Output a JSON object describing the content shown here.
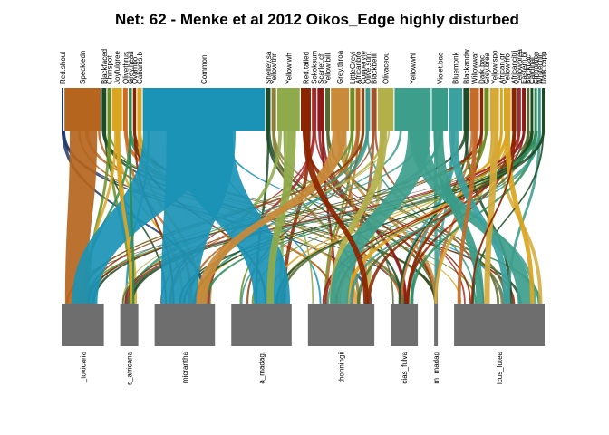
{
  "chart_data": {
    "type": "bipartite",
    "title": "Net: 62 - Menke et al 2012 Oikos_Edge highly disturbed",
    "higher_level": [
      {
        "label": "Red.shoul",
        "weight": 0.4,
        "color": "#1f3a6b"
      },
      {
        "label": "Speckledn",
        "weight": 8,
        "color": "#b5651d"
      },
      {
        "label": "Blackfaced",
        "weight": 1,
        "color": "#1c4b26"
      },
      {
        "label": "Chinspot",
        "weight": 0.8,
        "color": "#6b8e23"
      },
      {
        "label": "Joyfulgree",
        "weight": 2.2,
        "color": "#daa520"
      },
      {
        "label": "Olivethrus",
        "weight": 1,
        "color": "#d2691e"
      },
      {
        "label": "Grey.head",
        "weight": 0.7,
        "color": "#2e8b57"
      },
      {
        "label": "Ovambo",
        "weight": 0.7,
        "color": "#8b2500"
      },
      {
        "label": "Cabanis.b",
        "weight": 1,
        "color": "#daa520"
      },
      {
        "label": "Common",
        "weight": 27,
        "color": "#1a93b6"
      },
      {
        "label": "Shelley.sa",
        "weight": 1,
        "color": "#1c4b26"
      },
      {
        "label": "Yellow.thr",
        "weight": 1,
        "color": "#8b7d3a"
      },
      {
        "label": "Yellow.wh",
        "weight": 5,
        "color": "#8faa4a"
      },
      {
        "label": "Red.tailed",
        "weight": 2.2,
        "color": "#8b2500"
      },
      {
        "label": "Sokoksum",
        "weight": 1,
        "color": "#a52a2a"
      },
      {
        "label": "Scarlet.ch",
        "weight": 1.5,
        "color": "#8b1a1a"
      },
      {
        "label": "Yellow.bill",
        "weight": 1,
        "color": "#556b2f"
      },
      {
        "label": "Grey.throa",
        "weight": 4,
        "color": "#c98a3a"
      },
      {
        "label": "LittleGreyi",
        "weight": 1,
        "color": "#6b8e23"
      },
      {
        "label": "Africanbro",
        "weight": 1,
        "color": "#b5651d"
      },
      {
        "label": "Copperyte",
        "weight": 0.7,
        "color": "#8b4513"
      },
      {
        "label": "Olive.sunt",
        "weight": 1,
        "color": "#3c9a8a"
      },
      {
        "label": "Blackbelli",
        "weight": 1.2,
        "color": "#a0522d"
      },
      {
        "label": "Olivaceou",
        "weight": 3.5,
        "color": "#b3b04a"
      },
      {
        "label": "Yellowwhi",
        "weight": 8,
        "color": "#3d9e8c"
      },
      {
        "label": "Violet.bac",
        "weight": 3.5,
        "color": "#389b88"
      },
      {
        "label": "Bluemonk",
        "weight": 3,
        "color": "#3aa0a0"
      },
      {
        "label": "Blackandw",
        "weight": 1.2,
        "color": "#1c4b26"
      },
      {
        "label": "Willowwar",
        "weight": 2,
        "color": "#c46a2a"
      },
      {
        "label": "Dark.bac",
        "weight": 0.7,
        "color": "#8b2500"
      },
      {
        "label": "Grey.brea",
        "weight": 1,
        "color": "#6b8e23"
      },
      {
        "label": "Yellow.spo",
        "weight": 2,
        "color": "#d4a93a"
      },
      {
        "label": "African.gr",
        "weight": 0.6,
        "color": "#daa520"
      },
      {
        "label": "Yellow.fro",
        "weight": 1.5,
        "color": "#daa520"
      },
      {
        "label": "Africancitri",
        "weight": 1,
        "color": "#8b2500"
      },
      {
        "label": "Yellowbrea",
        "weight": 0.8,
        "color": "#a52a2a"
      },
      {
        "label": "Eastern.bl",
        "weight": 0.8,
        "color": "#8b1a1a"
      },
      {
        "label": "Blackbac",
        "weight": 0.6,
        "color": "#556b2f"
      },
      {
        "label": "Cardinal",
        "weight": 0.6,
        "color": "#1c4b26"
      },
      {
        "label": "Cinnamon",
        "weight": 0.6,
        "color": "#2e8b57"
      },
      {
        "label": "Whitechin",
        "weight": 0.6,
        "color": "#3c9a8a"
      },
      {
        "label": "Dark.capp",
        "weight": 0.6,
        "color": "#1c4b26"
      }
    ],
    "lower_level": [
      {
        "label": "_toxicaria",
        "weight": 14
      },
      {
        "label": "s_africana",
        "weight": 6
      },
      {
        "label": "micrantha",
        "weight": 20
      },
      {
        "label": "a_madag.",
        "weight": 20
      },
      {
        "label": "thonningii",
        "weight": 22
      },
      {
        "label": "cias_fulva",
        "weight": 9
      },
      {
        "label": "m_madag",
        "weight": 1.2
      },
      {
        "label": "icus_lutea",
        "weight": 30
      }
    ],
    "main_links": [
      {
        "from": 1,
        "to": 0
      },
      {
        "from": 9,
        "to": 2
      },
      {
        "from": 9,
        "to": 3
      },
      {
        "from": 9,
        "to": 0
      },
      {
        "from": 12,
        "to": 3
      },
      {
        "from": 17,
        "to": 2
      },
      {
        "from": 23,
        "to": 4
      },
      {
        "from": 24,
        "to": 7
      },
      {
        "from": 24,
        "to": 4
      },
      {
        "from": 25,
        "to": 7
      },
      {
        "from": 26,
        "to": 7
      },
      {
        "from": 28,
        "to": 7
      },
      {
        "from": 31,
        "to": 7
      },
      {
        "from": 33,
        "to": 7
      },
      {
        "from": 34,
        "to": 7
      },
      {
        "from": 13,
        "to": 4
      },
      {
        "from": 4,
        "to": 1
      },
      {
        "from": 6,
        "to": 1
      }
    ]
  }
}
